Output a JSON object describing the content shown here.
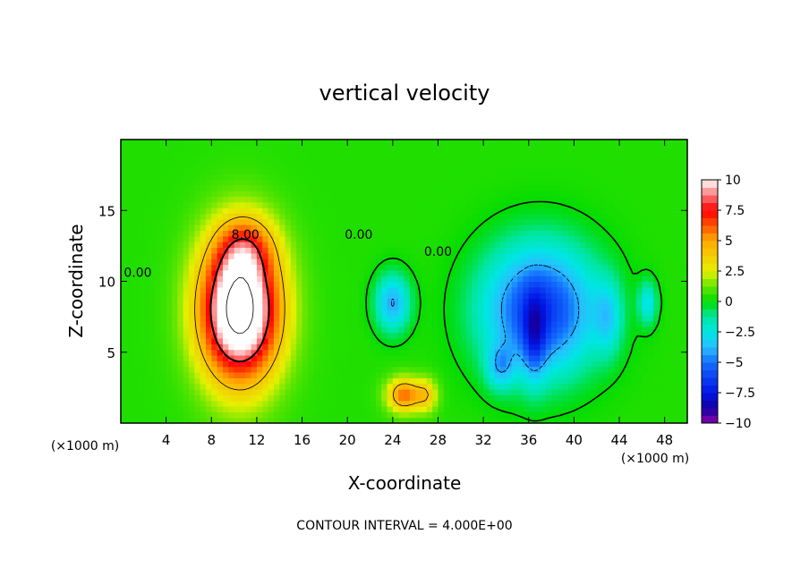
{
  "chart_data": {
    "type": "heatmap",
    "subtype": "filled-contour",
    "title": "vertical velocity",
    "xlabel": "X-coordinate",
    "ylabel": "Z-coordinate",
    "x_units_left": "(×1000 m)",
    "x_units_right": "(×1000 m)",
    "footer": "CONTOUR INTERVAL = 4.000E+00",
    "xlim": [
      0,
      50
    ],
    "ylim": [
      0,
      20
    ],
    "x_ticks": [
      "4",
      "8",
      "12",
      "16",
      "20",
      "24",
      "28",
      "32",
      "36",
      "40",
      "44",
      "48"
    ],
    "x_tick_values": [
      4,
      8,
      12,
      16,
      20,
      24,
      28,
      32,
      36,
      40,
      44,
      48
    ],
    "y_ticks": [
      "5",
      "10",
      "15"
    ],
    "y_tick_values": [
      5,
      10,
      15
    ],
    "colorbar": {
      "min": -10,
      "max": 10,
      "labels": [
        "10",
        "7.5",
        "5",
        "2.5",
        "0",
        "−2.5",
        "−5",
        "−7.5",
        "−10"
      ],
      "label_values": [
        10,
        7.5,
        5,
        2.5,
        0,
        -2.5,
        -5,
        -7.5,
        -10
      ]
    },
    "contour_labels": [
      {
        "text": "8.00",
        "x": 11.0,
        "y": 13.0
      },
      {
        "text": "0.00",
        "x": 1.5,
        "y": 10.3
      },
      {
        "text": "0.00",
        "x": 21.0,
        "y": 13.0
      },
      {
        "text": "0.00",
        "x": 28.0,
        "y": 11.8
      }
    ],
    "features": [
      {
        "kind": "updraft",
        "x": 10.5,
        "z": 8,
        "sx": 3.5,
        "sz": 5,
        "peak": 13
      },
      {
        "kind": "updraft",
        "x": 11,
        "z": 12.5,
        "sx": 2.5,
        "sz": 2.2,
        "peak": 3
      },
      {
        "kind": "updraft",
        "x": 25,
        "z": 2,
        "sx": 1.5,
        "sz": 1.2,
        "peak": 5.5
      },
      {
        "kind": "updraft",
        "x": 27,
        "z": 2,
        "sx": 1,
        "sz": 1.2,
        "peak": 3
      },
      {
        "kind": "downdraft",
        "x": 37,
        "z": 8,
        "sx": 5,
        "sz": 4.5,
        "peak": -7
      },
      {
        "kind": "downdraft",
        "x": 36.5,
        "z": 6,
        "sx": 1,
        "sz": 3,
        "peak": -3
      },
      {
        "kind": "downdraft",
        "x": 33.5,
        "z": 4,
        "sx": 1.2,
        "sz": 1.5,
        "peak": -3
      },
      {
        "kind": "downdraft",
        "x": 43,
        "z": 7.5,
        "sx": 1.2,
        "sz": 2.5,
        "peak": -2.5
      },
      {
        "kind": "downdraft",
        "x": 24,
        "z": 8.5,
        "sx": 1.5,
        "sz": 2,
        "peak": -4.5
      },
      {
        "kind": "downdraft",
        "x": 46.5,
        "z": 8.5,
        "sx": 0.8,
        "sz": 1.5,
        "peak": -3
      }
    ]
  }
}
